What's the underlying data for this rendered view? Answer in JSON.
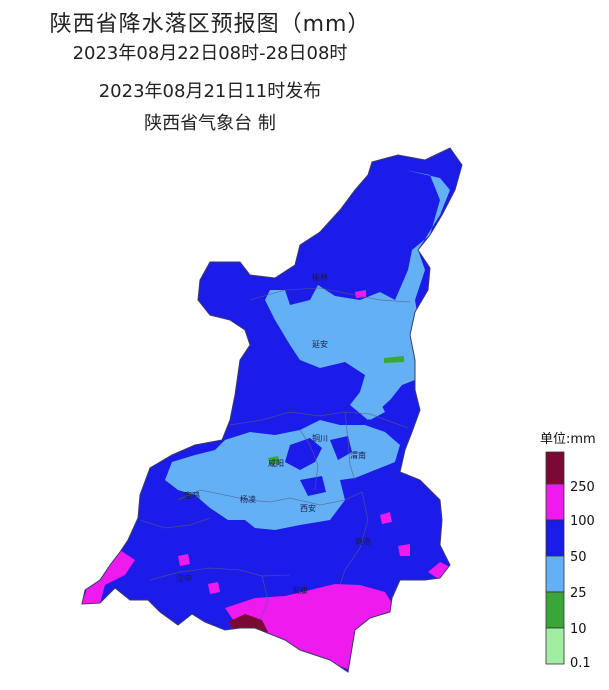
{
  "title": {
    "line1": "陕西省降水落区预报图（mm）",
    "line2": "2023年08月22日08时-28日08时",
    "line3": "2023年08月21日11时发布",
    "line4": "陕西省气象台 制"
  },
  "cities": [
    {
      "name": "榆林",
      "key": "yulin"
    },
    {
      "name": "延安",
      "key": "yanan"
    },
    {
      "name": "铜川",
      "key": "tongchuan"
    },
    {
      "name": "渭南",
      "key": "weinan"
    },
    {
      "name": "咸阳",
      "key": "xianyang"
    },
    {
      "name": "宝鸡",
      "key": "baoji"
    },
    {
      "name": "杨凌",
      "key": "yangling"
    },
    {
      "name": "西安",
      "key": "xian"
    },
    {
      "name": "商洛",
      "key": "shangluo"
    },
    {
      "name": "汉中",
      "key": "hanzhong"
    },
    {
      "name": "安康",
      "key": "ankang"
    }
  ],
  "legend": {
    "title": "单位:mm",
    "labels": [
      "250",
      "100",
      "50",
      "25",
      "10",
      "0.1"
    ],
    "colors": {
      "c250": "#7a0a33",
      "c100": "#ee1aee",
      "c50": "#1c1ce8",
      "c25": "#64b0f5",
      "c10": "#3aa63a",
      "c01": "#a3eda3"
    }
  }
}
